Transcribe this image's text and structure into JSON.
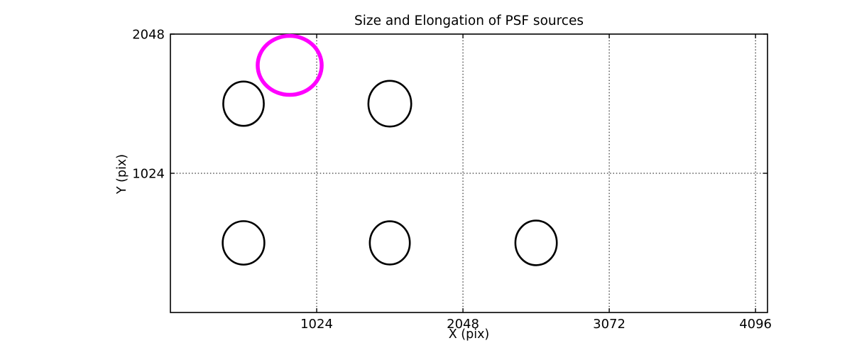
{
  "chart_data": {
    "type": "scatter",
    "title": "Size and Elongation of PSF sources",
    "xlabel": "X (pix)",
    "ylabel": "Y (pix)",
    "xlim": [
      0,
      4180
    ],
    "ylim": [
      0,
      2048
    ],
    "xticks": [
      1024,
      2048,
      3072,
      4096
    ],
    "yticks": [
      1024,
      2048
    ],
    "grid": {
      "visible": true,
      "style": "dotted",
      "color": "#000000"
    },
    "frame_color": "#000000",
    "background": "#ffffff",
    "ellipses": [
      {
        "x": 512,
        "y": 1536,
        "rx": 142,
        "ry": 163,
        "color": "#000000",
        "stroke_width": 2.6
      },
      {
        "x": 1536,
        "y": 1536,
        "rx": 150,
        "ry": 168,
        "color": "#000000",
        "stroke_width": 2.6
      },
      {
        "x": 512,
        "y": 512,
        "rx": 146,
        "ry": 160,
        "color": "#000000",
        "stroke_width": 2.6
      },
      {
        "x": 1536,
        "y": 512,
        "rx": 140,
        "ry": 159,
        "color": "#000000",
        "stroke_width": 2.6
      },
      {
        "x": 2560,
        "y": 512,
        "rx": 145,
        "ry": 164,
        "color": "#000000",
        "stroke_width": 2.6
      },
      {
        "x": 835,
        "y": 1818,
        "rx": 224,
        "ry": 217,
        "color": "#ff00ff",
        "stroke_width": 5.5
      }
    ]
  }
}
